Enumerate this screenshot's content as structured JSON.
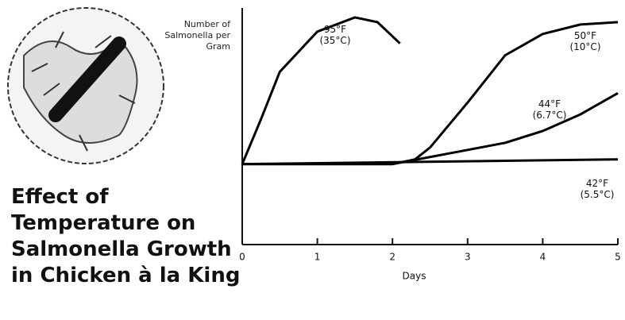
{
  "chart_data": {
    "type": "line",
    "title": "Effect of Temperature on Salmonella Growth in Chicken à la King",
    "y_label": "Number of Salmonella per Gram",
    "x_label": "Days",
    "xlim": [
      0,
      5
    ],
    "xticks": [
      0,
      1,
      2,
      3,
      4,
      5
    ],
    "ylim": [
      0,
      100
    ],
    "series": [
      {
        "name": "95°F (35°C)",
        "color": "#000000",
        "x": [
          0,
          0.25,
          0.5,
          1,
          1.5,
          1.8,
          2.1
        ],
        "values": [
          34,
          53,
          73,
          90,
          96,
          94,
          85
        ]
      },
      {
        "name": "50°F (10°C)",
        "color": "#000000",
        "x": [
          0,
          2,
          2.3,
          2.5,
          3,
          3.5,
          4,
          4.5,
          5
        ],
        "values": [
          34,
          34,
          36,
          41,
          60,
          80,
          89,
          93,
          94
        ]
      },
      {
        "name": "44°F (6.7°C)",
        "color": "#000000",
        "x": [
          0,
          2,
          3,
          3.5,
          4,
          4.5,
          5
        ],
        "values": [
          34,
          34,
          40,
          43,
          48,
          55,
          64
        ]
      },
      {
        "name": "42°F (5.5°C)",
        "color": "#000000",
        "x": [
          0,
          5
        ],
        "values": [
          34,
          36
        ]
      }
    ]
  }
}
